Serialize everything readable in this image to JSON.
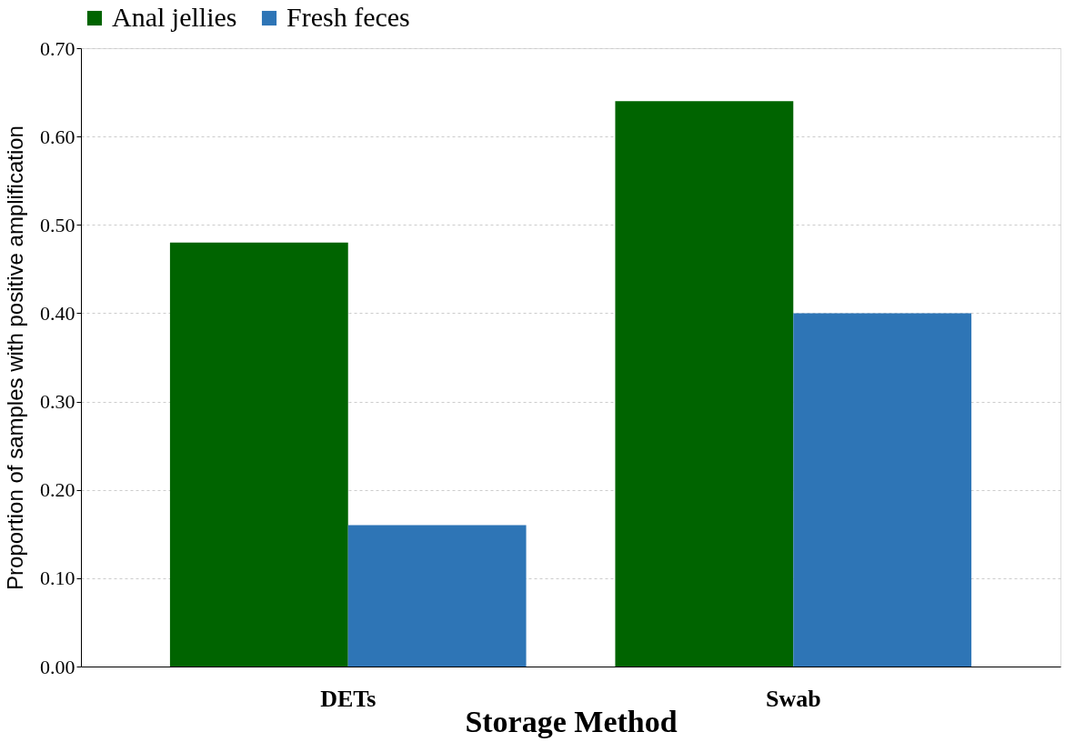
{
  "chart_data": {
    "type": "bar",
    "xlabel": "Storage Method",
    "ylabel": "Proportion of samples with positive amplification",
    "categories": [
      "DETs",
      "Swab"
    ],
    "series": [
      {
        "name": "Anal jellies",
        "color": "#006400",
        "values": [
          0.48,
          0.64
        ]
      },
      {
        "name": "Fresh feces",
        "color": "#2e75b6",
        "values": [
          0.16,
          0.4
        ]
      }
    ],
    "ylim": [
      0,
      0.7
    ],
    "yticks": [
      {
        "value": 0,
        "label": "0.00"
      },
      {
        "value": 0.1,
        "label": "0.10"
      },
      {
        "value": 0.2,
        "label": "0.20"
      },
      {
        "value": 0.3,
        "label": "0.30"
      },
      {
        "value": 0.4,
        "label": "0.40"
      },
      {
        "value": 0.5,
        "label": "0.50"
      },
      {
        "value": 0.6,
        "label": "0.60"
      },
      {
        "value": 0.7,
        "label": "0.70"
      }
    ],
    "grid": "y",
    "legend": "top"
  }
}
